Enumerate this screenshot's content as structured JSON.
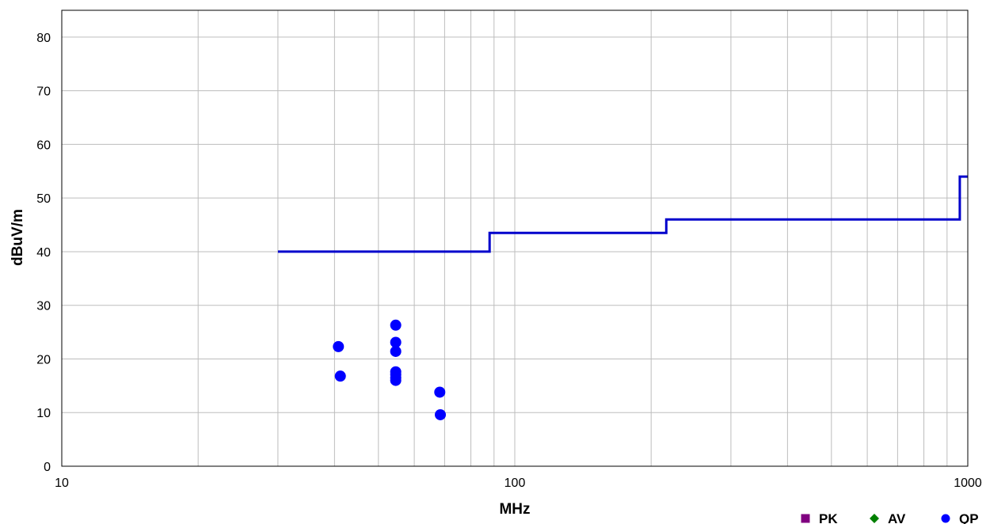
{
  "chart_data": {
    "type": "scatter",
    "xlabel": "MHz",
    "ylabel": "dBuV/m",
    "xscale": "log",
    "xlim": [
      10,
      1000
    ],
    "ylim": [
      0,
      85
    ],
    "x_tick_labels": [
      "10",
      "100",
      "1000"
    ],
    "x_ticks": [
      10,
      100,
      1000
    ],
    "y_ticks": [
      0,
      10,
      20,
      30,
      40,
      50,
      60,
      70,
      80
    ],
    "y_tick_labels": [
      "0",
      "10",
      "20",
      "30",
      "40",
      "50",
      "60",
      "70",
      "80"
    ],
    "grid": true,
    "legend_position": "bottom-right",
    "limit_line": {
      "color": "#0000cc",
      "points": [
        [
          30,
          40
        ],
        [
          88,
          40
        ],
        [
          88,
          43.5
        ],
        [
          216,
          43.5
        ],
        [
          216,
          46
        ],
        [
          960,
          46
        ],
        [
          960,
          54
        ],
        [
          1000,
          54
        ]
      ]
    },
    "series": [
      {
        "name": "PK",
        "marker": "square",
        "color": "#800080",
        "points": []
      },
      {
        "name": "AV",
        "marker": "diamond",
        "color": "#008000",
        "points": []
      },
      {
        "name": "QP",
        "marker": "circle",
        "color": "#0000ff",
        "points": [
          [
            40.8,
            22.3
          ],
          [
            41.2,
            16.8
          ],
          [
            54.6,
            26.3
          ],
          [
            54.6,
            23.1
          ],
          [
            54.6,
            21.4
          ],
          [
            54.6,
            17.6
          ],
          [
            54.6,
            17.1
          ],
          [
            54.6,
            16.5
          ],
          [
            54.6,
            16.0
          ],
          [
            68.3,
            13.8
          ],
          [
            68.5,
            9.6
          ]
        ]
      }
    ]
  }
}
